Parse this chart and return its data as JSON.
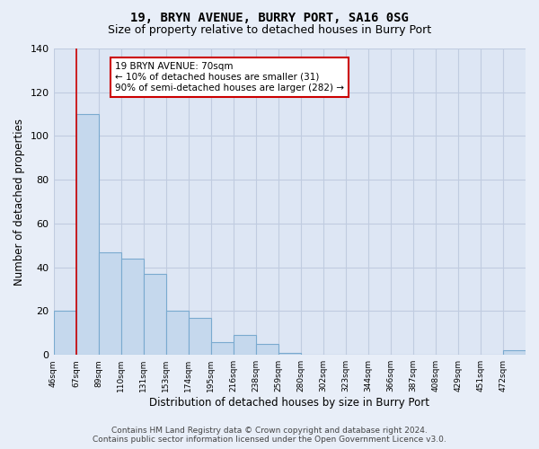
{
  "title": "19, BRYN AVENUE, BURRY PORT, SA16 0SG",
  "subtitle": "Size of property relative to detached houses in Burry Port",
  "xlabel": "Distribution of detached houses by size in Burry Port",
  "ylabel": "Number of detached properties",
  "bar_color": "#c5d8ed",
  "bar_edge_color": "#7aaacf",
  "tick_labels": [
    "46sqm",
    "67sqm",
    "89sqm",
    "110sqm",
    "131sqm",
    "153sqm",
    "174sqm",
    "195sqm",
    "216sqm",
    "238sqm",
    "259sqm",
    "280sqm",
    "302sqm",
    "323sqm",
    "344sqm",
    "366sqm",
    "387sqm",
    "408sqm",
    "429sqm",
    "451sqm",
    "472sqm"
  ],
  "bar_values": [
    20,
    110,
    47,
    44,
    37,
    20,
    17,
    6,
    9,
    5,
    1,
    0,
    0,
    0,
    0,
    0,
    0,
    0,
    0,
    0,
    2
  ],
  "ylim": [
    0,
    140
  ],
  "yticks": [
    0,
    20,
    40,
    60,
    80,
    100,
    120,
    140
  ],
  "vline_x_index": 1,
  "vline_color": "#cc0000",
  "annotation_text": "19 BRYN AVENUE: 70sqm\n← 10% of detached houses are smaller (31)\n90% of semi-detached houses are larger (282) →",
  "annotation_box_color": "#ffffff",
  "annotation_box_edge_color": "#cc0000",
  "footer_line1": "Contains HM Land Registry data © Crown copyright and database right 2024.",
  "footer_line2": "Contains public sector information licensed under the Open Government Licence v3.0.",
  "background_color": "#e8eef8",
  "plot_background_color": "#dde6f4",
  "grid_color": "#c0cce0",
  "title_fontsize": 10,
  "subtitle_fontsize": 9,
  "xlabel_fontsize": 8.5,
  "ylabel_fontsize": 8.5,
  "footer_fontsize": 6.5
}
